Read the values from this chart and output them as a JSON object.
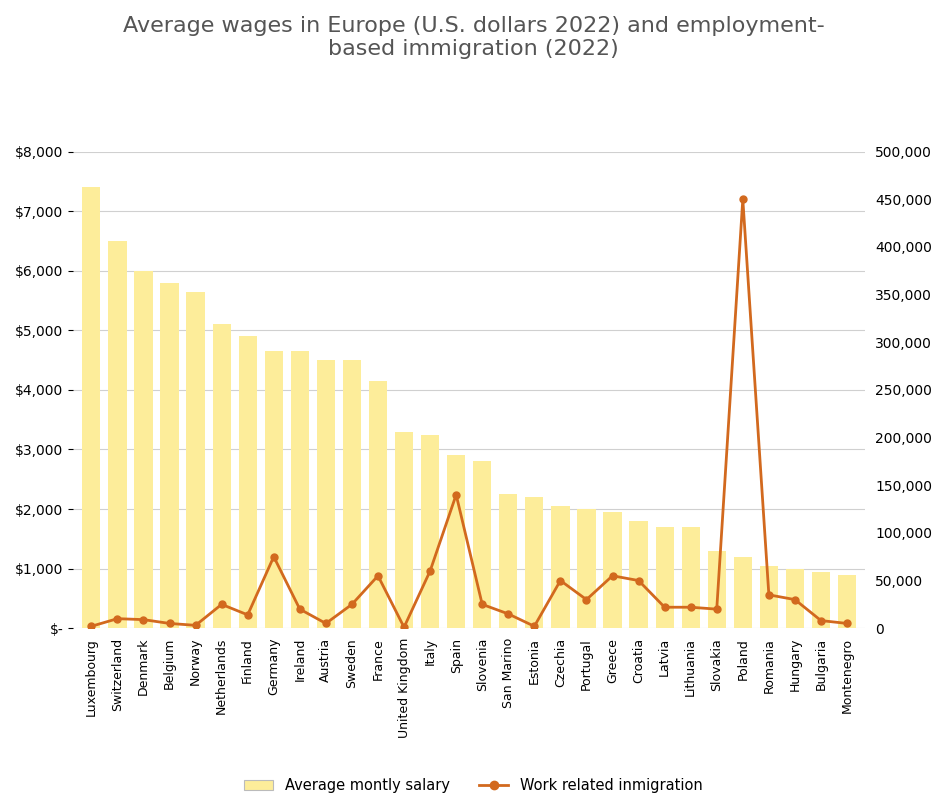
{
  "title": "Average wages in Europe (U.S. dollars 2022) and employment-\nbased immigration (2022)",
  "categories": [
    "Luxembourg",
    "Switzerland",
    "Denmark",
    "Belgium",
    "Norway",
    "Netherlands",
    "Finland",
    "Germany",
    "Ireland",
    "Austria",
    "Sweden",
    "France",
    "United Kingdom",
    "Italy",
    "Spain",
    "Slovenia",
    "San Marino",
    "Estonia",
    "Czechia",
    "Portugal",
    "Greece",
    "Croatia",
    "Latvia",
    "Lithuania",
    "Slovakia",
    "Poland",
    "Romania",
    "Hungary",
    "Bulgaria",
    "Montenegro"
  ],
  "avg_salary": [
    7400,
    6500,
    6000,
    5800,
    5650,
    5100,
    4900,
    4650,
    4650,
    4500,
    4500,
    4150,
    3300,
    3250,
    2900,
    2800,
    2250,
    2200,
    2050,
    2000,
    1950,
    1800,
    1700,
    1700,
    1300,
    1200,
    1050,
    1000,
    950,
    900
  ],
  "immigration": [
    2000,
    10000,
    9000,
    5000,
    3000,
    25000,
    14000,
    75000,
    20000,
    5000,
    25000,
    55000,
    1000,
    60000,
    140000,
    25000,
    15000,
    2000,
    50000,
    30000,
    55000,
    50000,
    22000,
    22000,
    20000,
    450000,
    35000,
    30000,
    8000,
    5000
  ],
  "bar_color": "#FDED9A",
  "line_color": "#D2691E",
  "background_color": "#ffffff",
  "ylim_left": [
    0,
    8000
  ],
  "ylim_right": [
    0,
    500000
  ],
  "left_ticks": [
    0,
    1000,
    2000,
    3000,
    4000,
    5000,
    6000,
    7000,
    8000
  ],
  "right_ticks": [
    0,
    50000,
    100000,
    150000,
    200000,
    250000,
    300000,
    350000,
    400000,
    450000,
    500000
  ],
  "legend_salary": "Average montly salary",
  "legend_immigration": "Work related inmigration",
  "title_fontsize": 16,
  "tick_fontsize": 10,
  "xtick_fontsize": 9,
  "grid_color": "#d0d0d0"
}
